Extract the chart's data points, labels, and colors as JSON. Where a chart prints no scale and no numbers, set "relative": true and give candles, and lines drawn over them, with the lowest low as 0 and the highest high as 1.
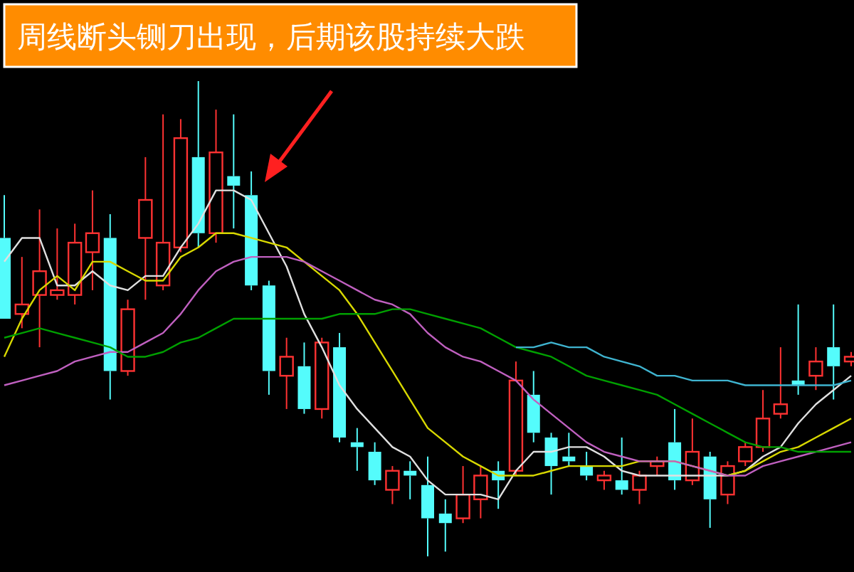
{
  "chart_data": {
    "type": "candlestick",
    "title": "周线断头铡刀出现，后期该股持续大跌",
    "relative": true,
    "categories": [
      null,
      null,
      null,
      null,
      null,
      null,
      null,
      null,
      null,
      null,
      null,
      null,
      null,
      null,
      null,
      null,
      null,
      null,
      null,
      null,
      null,
      null,
      null,
      null,
      null,
      null,
      null,
      null,
      null,
      null,
      null,
      null,
      null,
      null,
      null,
      null,
      null,
      null,
      null,
      null,
      null,
      null,
      null,
      null,
      null,
      null,
      null,
      null,
      null
    ],
    "ohlc": [
      [
        0.67,
        0.76,
        0.5,
        0.5
      ],
      [
        0.51,
        0.63,
        0.48,
        0.53
      ],
      [
        0.55,
        0.73,
        0.44,
        0.6
      ],
      [
        0.55,
        0.69,
        0.54,
        0.56
      ],
      [
        0.55,
        0.7,
        0.53,
        0.66
      ],
      [
        0.64,
        0.77,
        0.56,
        0.68
      ],
      [
        0.67,
        0.72,
        0.33,
        0.39
      ],
      [
        0.39,
        0.54,
        0.38,
        0.52
      ],
      [
        0.67,
        0.84,
        0.54,
        0.75
      ],
      [
        0.57,
        0.93,
        0.56,
        0.66
      ],
      [
        0.65,
        0.92,
        0.64,
        0.88
      ],
      [
        0.84,
        1.0,
        0.65,
        0.68
      ],
      [
        0.68,
        0.94,
        0.66,
        0.85
      ],
      [
        0.8,
        0.93,
        0.69,
        0.78
      ],
      [
        0.76,
        0.81,
        0.56,
        0.57
      ],
      [
        0.57,
        0.58,
        0.34,
        0.39
      ],
      [
        0.38,
        0.46,
        0.31,
        0.42
      ],
      [
        0.4,
        0.45,
        0.3,
        0.31
      ],
      [
        0.31,
        0.46,
        0.29,
        0.45
      ],
      [
        0.44,
        0.47,
        0.24,
        0.25
      ],
      [
        0.24,
        0.27,
        0.18,
        0.23
      ],
      [
        0.22,
        0.24,
        0.15,
        0.16
      ],
      [
        0.14,
        0.19,
        0.11,
        0.18
      ],
      [
        0.18,
        0.2,
        0.12,
        0.17
      ],
      [
        0.15,
        0.21,
        0.0,
        0.08
      ],
      [
        0.09,
        0.12,
        0.01,
        0.07
      ],
      [
        0.08,
        0.19,
        0.07,
        0.13
      ],
      [
        0.12,
        0.19,
        0.08,
        0.17
      ],
      [
        0.18,
        0.2,
        0.1,
        0.16
      ],
      [
        0.18,
        0.41,
        0.17,
        0.37
      ],
      [
        0.34,
        0.39,
        0.24,
        0.26
      ],
      [
        0.25,
        0.26,
        0.13,
        0.19
      ],
      [
        0.21,
        0.26,
        0.19,
        0.2
      ],
      [
        0.19,
        0.22,
        0.16,
        0.17
      ],
      [
        0.16,
        0.18,
        0.14,
        0.17
      ],
      [
        0.16,
        0.25,
        0.13,
        0.14
      ],
      [
        0.14,
        0.18,
        0.11,
        0.17
      ],
      [
        0.19,
        0.21,
        0.17,
        0.2
      ],
      [
        0.24,
        0.31,
        0.14,
        0.16
      ],
      [
        0.16,
        0.29,
        0.15,
        0.22
      ],
      [
        0.21,
        0.22,
        0.06,
        0.12
      ],
      [
        0.13,
        0.2,
        0.11,
        0.19
      ],
      [
        0.2,
        0.24,
        0.19,
        0.23
      ],
      [
        0.23,
        0.35,
        0.22,
        0.29
      ],
      [
        0.3,
        0.44,
        0.29,
        0.32
      ],
      [
        0.37,
        0.53,
        0.34,
        0.36
      ],
      [
        0.38,
        0.44,
        0.35,
        0.41
      ],
      [
        0.44,
        0.53,
        0.33,
        0.4
      ],
      [
        0.41,
        0.43,
        0.4,
        0.42
      ]
    ],
    "series": [
      {
        "type": "line",
        "color": "#e0e0e0",
        "values": [
          0.62,
          0.67,
          0.67,
          0.57,
          0.57,
          0.6,
          0.57,
          0.56,
          0.59,
          0.59,
          0.65,
          0.7,
          0.77,
          0.77,
          0.75,
          0.68,
          0.61,
          0.51,
          0.44,
          0.36,
          0.31,
          0.27,
          0.23,
          0.21,
          0.16,
          0.13,
          0.13,
          0.13,
          0.12,
          0.18,
          0.22,
          0.22,
          0.23,
          0.23,
          0.21,
          0.18,
          0.17,
          0.17,
          0.17,
          0.17,
          0.17,
          0.17,
          0.18,
          0.21,
          0.23,
          0.28,
          0.32,
          0.35,
          0.38
        ]
      },
      {
        "type": "line",
        "color": "#d8d800",
        "values": [
          0.42,
          0.5,
          0.56,
          0.59,
          0.56,
          0.62,
          0.62,
          0.6,
          0.58,
          0.58,
          0.63,
          0.65,
          0.68,
          0.68,
          0.67,
          0.66,
          0.65,
          0.62,
          0.59,
          0.56,
          0.51,
          0.45,
          0.39,
          0.33,
          0.27,
          0.24,
          0.21,
          0.19,
          0.17,
          0.17,
          0.17,
          0.18,
          0.19,
          0.19,
          0.19,
          0.19,
          0.2,
          0.2,
          0.2,
          0.19,
          0.18,
          0.17,
          0.18,
          0.2,
          0.22,
          0.23,
          0.25,
          0.27,
          0.29
        ]
      },
      {
        "type": "line",
        "color": "#c060c0",
        "values": [
          0.36,
          0.37,
          0.38,
          0.39,
          0.41,
          0.42,
          0.43,
          0.43,
          0.45,
          0.47,
          0.51,
          0.56,
          0.6,
          0.62,
          0.63,
          0.63,
          0.63,
          0.62,
          0.6,
          0.58,
          0.56,
          0.54,
          0.53,
          0.51,
          0.47,
          0.44,
          0.42,
          0.41,
          0.39,
          0.37,
          0.33,
          0.3,
          0.27,
          0.24,
          0.22,
          0.21,
          0.2,
          0.2,
          0.2,
          0.19,
          0.18,
          0.17,
          0.17,
          0.19,
          0.2,
          0.21,
          0.22,
          0.23,
          0.24
        ]
      },
      {
        "type": "line",
        "color": "#00a000",
        "values": [
          0.46,
          0.47,
          0.48,
          0.47,
          0.46,
          0.45,
          0.44,
          0.42,
          0.42,
          0.43,
          0.45,
          0.46,
          0.48,
          0.5,
          0.5,
          0.5,
          0.5,
          0.5,
          0.5,
          0.51,
          0.51,
          0.51,
          0.52,
          0.52,
          0.51,
          0.5,
          0.49,
          0.48,
          0.46,
          0.44,
          0.43,
          0.42,
          0.4,
          0.38,
          0.37,
          0.36,
          0.35,
          0.34,
          0.32,
          0.3,
          0.28,
          0.26,
          0.24,
          0.23,
          0.23,
          0.22,
          0.22,
          0.22,
          0.22
        ]
      },
      {
        "type": "line",
        "color": "#3fb4d0",
        "values": [
          null,
          null,
          null,
          null,
          null,
          null,
          null,
          null,
          null,
          null,
          null,
          null,
          null,
          null,
          null,
          null,
          null,
          null,
          null,
          null,
          null,
          null,
          null,
          null,
          null,
          null,
          null,
          null,
          null,
          0.44,
          0.44,
          0.45,
          0.44,
          0.44,
          0.42,
          0.41,
          0.4,
          0.38,
          0.38,
          0.37,
          0.37,
          0.37,
          0.36,
          0.36,
          0.36,
          0.36,
          0.36,
          0.36,
          0.37
        ]
      }
    ]
  }
}
